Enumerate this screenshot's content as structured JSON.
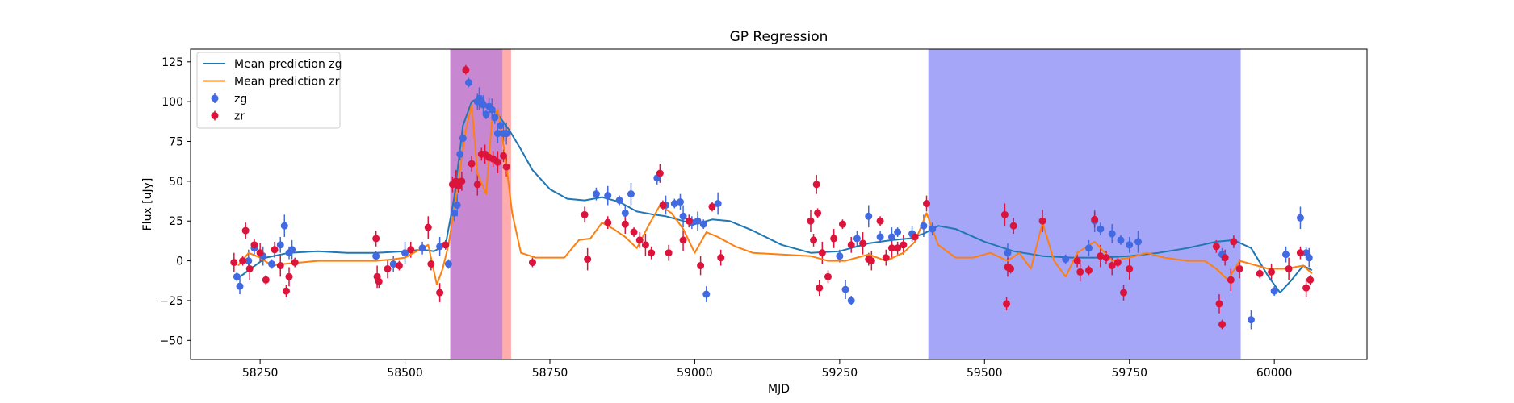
{
  "chart_data": {
    "type": "scatter",
    "title": "GP Regression",
    "xlabel": "MJD",
    "ylabel": "Flux [uJy]",
    "xlim": [
      58130,
      60160
    ],
    "ylim": [
      -62,
      133
    ],
    "xticks": [
      58250,
      58500,
      58750,
      59000,
      59250,
      59500,
      59750,
      60000
    ],
    "yticks": [
      -50,
      -25,
      0,
      25,
      50,
      75,
      100,
      125
    ],
    "grid": false,
    "legend_position": "top-left",
    "shaded_regions": [
      {
        "x0": 58578,
        "x1": 58683,
        "color": "#ff8080",
        "opacity": 0.65
      },
      {
        "x0": 58578,
        "x1": 58668,
        "color": "#9b6cf0",
        "opacity": 0.55
      },
      {
        "x0": 59403,
        "x1": 59942,
        "color": "#7070f5",
        "opacity": 0.62
      }
    ],
    "series": [
      {
        "name": "Mean prediction zg",
        "kind": "line",
        "color": "#1f77b4",
        "x": [
          58208,
          58230,
          58260,
          58300,
          58350,
          58400,
          58450,
          58500,
          58530,
          58550,
          58570,
          58585,
          58600,
          58615,
          58625,
          58640,
          58660,
          58680,
          58700,
          58720,
          58750,
          58780,
          58810,
          58840,
          58870,
          58900,
          58930,
          58950,
          58980,
          59000,
          59030,
          59060,
          59100,
          59150,
          59200,
          59250,
          59300,
          59340,
          59370,
          59395,
          59420,
          59450,
          59500,
          59550,
          59600,
          59650,
          59700,
          59750,
          59800,
          59850,
          59900,
          59930,
          59960,
          59990,
          60010,
          60030,
          60050,
          60065
        ],
        "y": [
          -12,
          -6,
          2,
          5,
          6,
          5,
          5,
          6,
          7,
          6,
          10,
          40,
          85,
          100,
          102,
          98,
          92,
          82,
          70,
          57,
          45,
          39,
          38,
          40,
          37,
          31,
          29,
          28,
          25,
          23,
          26,
          25,
          19,
          10,
          5,
          6,
          11,
          13,
          14,
          17,
          22,
          20,
          12,
          6,
          3,
          2,
          2,
          3,
          5,
          8,
          12,
          13,
          8,
          -10,
          -20,
          -12,
          -3,
          -6
        ]
      },
      {
        "name": "Mean prediction zr",
        "kind": "line",
        "color": "#ff7f0e",
        "x": [
          58212,
          58230,
          58250,
          58270,
          58290,
          58320,
          58350,
          58400,
          58450,
          58480,
          58500,
          58520,
          58540,
          58555,
          58565,
          58575,
          58590,
          58605,
          58615,
          58625,
          58640,
          58650,
          58660,
          58672,
          58685,
          58700,
          58725,
          58750,
          58775,
          58800,
          58820,
          58840,
          58860,
          58880,
          58900,
          58920,
          58940,
          58960,
          58980,
          59000,
          59020,
          59040,
          59070,
          59100,
          59150,
          59200,
          59230,
          59260,
          59300,
          59330,
          59360,
          59380,
          59400,
          59420,
          59450,
          59480,
          59510,
          59540,
          59560,
          59580,
          59600,
          59620,
          59640,
          59660,
          59690,
          59720,
          59750,
          59780,
          59810,
          59850,
          59880,
          59900,
          59920,
          59940,
          59960,
          59990,
          60020,
          60050,
          60065
        ],
        "y": [
          -3,
          5,
          2,
          -3,
          -2,
          -1,
          0,
          0,
          0,
          1,
          2,
          6,
          10,
          -15,
          -5,
          10,
          45,
          82,
          98,
          55,
          42,
          88,
          95,
          68,
          30,
          5,
          2,
          2,
          2,
          13,
          14,
          24,
          20,
          15,
          8,
          22,
          35,
          30,
          20,
          5,
          18,
          15,
          9,
          5,
          4,
          3,
          0,
          0,
          4,
          0,
          5,
          12,
          30,
          10,
          2,
          2,
          5,
          0,
          5,
          -5,
          24,
          0,
          -10,
          5,
          12,
          0,
          2,
          5,
          2,
          0,
          0,
          -5,
          -12,
          0,
          -2,
          -5,
          -5,
          -3,
          -8
        ]
      },
      {
        "name": "zg",
        "kind": "points",
        "color": "#4169e1",
        "x": [
          58210,
          58215,
          58230,
          58240,
          58255,
          58270,
          58285,
          58292,
          58300,
          58305,
          58450,
          58480,
          58500,
          58530,
          58560,
          58575,
          58585,
          58590,
          58595,
          58600,
          58610,
          58625,
          58628,
          58632,
          58635,
          58640,
          58645,
          58650,
          58655,
          58660,
          58665,
          58670,
          58675,
          58830,
          58850,
          58870,
          58880,
          58890,
          58935,
          58950,
          58965,
          58975,
          58980,
          58995,
          59005,
          59015,
          59020,
          59040,
          59250,
          59260,
          59270,
          59280,
          59300,
          59320,
          59340,
          59350,
          59375,
          59395,
          59410,
          59540,
          59640,
          59680,
          59690,
          59700,
          59720,
          59735,
          59750,
          59765,
          59910,
          59960,
          60000,
          60020,
          60045,
          60055,
          60060
        ],
        "y": [
          -10,
          -16,
          0,
          8,
          3,
          -2,
          10,
          22,
          5,
          7,
          3,
          -2,
          5,
          8,
          9,
          -2,
          30,
          35,
          67,
          77,
          112,
          100,
          102,
          100,
          98,
          92,
          97,
          95,
          90,
          80,
          85,
          80,
          80,
          42,
          41,
          38,
          30,
          42,
          52,
          35,
          36,
          37,
          28,
          24,
          25,
          23,
          -21,
          36,
          3,
          -18,
          -25,
          14,
          28,
          15,
          15,
          18,
          17,
          22,
          20,
          5,
          1,
          8,
          25,
          20,
          17,
          13,
          10,
          12,
          4,
          -37,
          -19,
          4,
          27,
          5,
          2
        ]
      },
      {
        "name": "zr",
        "kind": "points",
        "color": "#dc143c",
        "x": [
          58205,
          58220,
          58225,
          58232,
          58240,
          58250,
          58260,
          58275,
          58285,
          58295,
          58300,
          58310,
          58450,
          58452,
          58455,
          58470,
          58490,
          58510,
          58540,
          58545,
          58560,
          58570,
          58582,
          58588,
          58592,
          58598,
          58605,
          58615,
          58625,
          58632,
          58638,
          58645,
          58652,
          58660,
          58670,
          58675,
          58720,
          58810,
          58815,
          58850,
          58880,
          58895,
          58905,
          58915,
          58925,
          58940,
          58945,
          58955,
          58980,
          58990,
          59010,
          59030,
          59045,
          59200,
          59205,
          59210,
          59212,
          59215,
          59220,
          59230,
          59240,
          59255,
          59270,
          59290,
          59300,
          59305,
          59320,
          59330,
          59340,
          59350,
          59360,
          59380,
          59400,
          59535,
          59538,
          59540,
          59545,
          59550,
          59600,
          59660,
          59665,
          59680,
          59690,
          59700,
          59710,
          59720,
          59730,
          59740,
          59750,
          59900,
          59905,
          59910,
          59915,
          59925,
          59930,
          59940,
          59975,
          59995,
          60025,
          60045,
          60055,
          60062
        ],
        "y": [
          -1,
          0,
          19,
          -5,
          10,
          5,
          -12,
          7,
          -3,
          -19,
          -10,
          -1,
          14,
          -10,
          -13,
          -5,
          -3,
          7,
          21,
          -2,
          -20,
          10,
          48,
          50,
          47,
          50,
          120,
          61,
          48,
          67,
          67,
          65,
          64,
          62,
          66,
          59,
          -1,
          29,
          1,
          24,
          23,
          18,
          13,
          10,
          5,
          55,
          35,
          5,
          13,
          25,
          -3,
          34,
          2,
          25,
          13,
          48,
          30,
          -17,
          5,
          -10,
          14,
          23,
          10,
          11,
          1,
          0,
          25,
          2,
          8,
          8,
          10,
          15,
          36,
          29,
          -27,
          -4,
          -5,
          22,
          25,
          0,
          -7,
          -6,
          26,
          3,
          2,
          -3,
          -1,
          -20,
          -5,
          9,
          -27,
          -40,
          2,
          -12,
          12,
          -5,
          -8,
          -7,
          -5,
          5,
          -17,
          -12
        ]
      }
    ],
    "legend": [
      "Mean prediction zg",
      "Mean prediction zr",
      "zg",
      "zr"
    ]
  }
}
